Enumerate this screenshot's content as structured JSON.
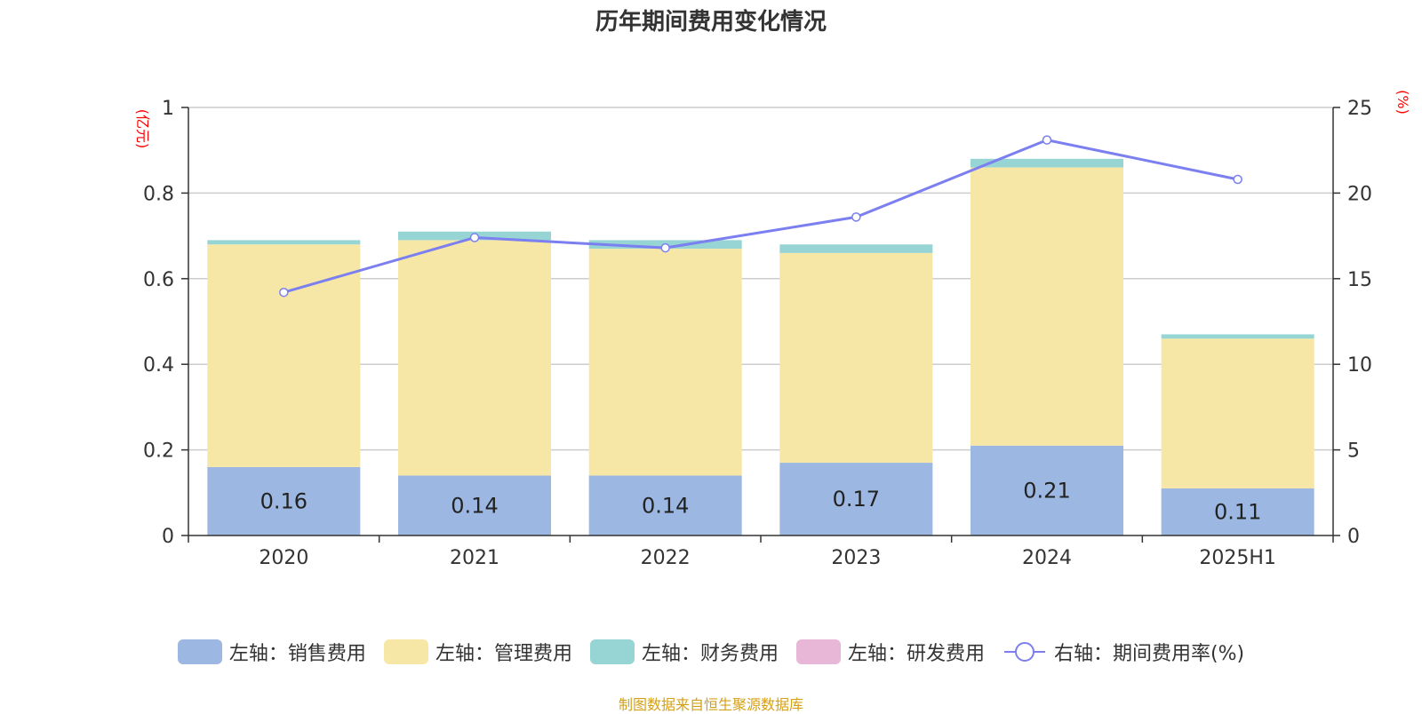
{
  "chart_data": {
    "type": "bar",
    "title": "历年期间费用变化情况",
    "categories": [
      "2020",
      "2021",
      "2022",
      "2023",
      "2024",
      "2025H1"
    ],
    "series": [
      {
        "name": "左轴：销售费用",
        "axis": "left",
        "color": "#9cb8e2",
        "values": [
          0.16,
          0.14,
          0.14,
          0.17,
          0.21,
          0.11
        ],
        "labels": [
          "0.16",
          "0.14",
          "0.14",
          "0.17",
          "0.21",
          "0.11"
        ]
      },
      {
        "name": "左轴：管理费用",
        "axis": "left",
        "color": "#f7e7a7",
        "values": [
          0.52,
          0.55,
          0.53,
          0.49,
          0.65,
          0.35
        ]
      },
      {
        "name": "左轴：财务费用",
        "axis": "left",
        "color": "#97d5d5",
        "values": [
          0.01,
          0.02,
          0.02,
          0.02,
          0.02,
          0.01
        ]
      },
      {
        "name": "左轴：研发费用",
        "axis": "left",
        "color": "#e8b7d8",
        "values": [
          0,
          0,
          0,
          0,
          0,
          0
        ]
      },
      {
        "name": "右轴：期间费用率(%)",
        "axis": "right",
        "type": "line",
        "color": "#7b7fef",
        "values": [
          14.2,
          17.4,
          16.8,
          18.6,
          23.1,
          20.8
        ]
      }
    ],
    "left_axis": {
      "unit": "(亿元)",
      "ylim": [
        0,
        1
      ],
      "ticks": [
        "0",
        "0.2",
        "0.4",
        "0.6",
        "0.8",
        "1"
      ]
    },
    "right_axis": {
      "unit": "(%)",
      "ylim": [
        0,
        25
      ],
      "ticks": [
        "0",
        "5",
        "10",
        "15",
        "20",
        "25"
      ]
    },
    "grid": true,
    "legend_position": "bottom"
  },
  "source_note": "制图数据来自恒生聚源数据库"
}
